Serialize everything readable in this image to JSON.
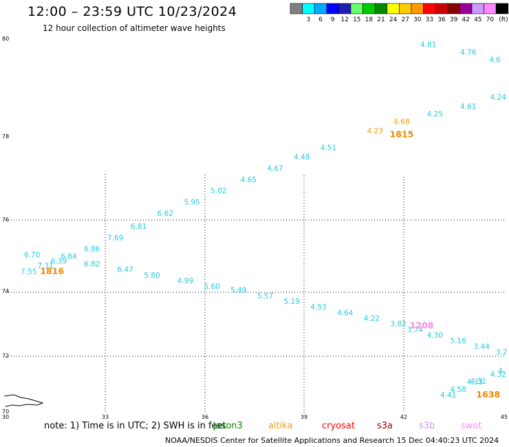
{
  "header": {
    "title": "12:00 – 23:59 UTC 10/23/2024",
    "subtitle": "12 hour collection of altimeter wave heights"
  },
  "colorbar": {
    "unit": "(ft)",
    "bins": [
      {
        "color": "#808080",
        "label": ""
      },
      {
        "color": "#00ffff",
        "label": "3"
      },
      {
        "color": "#00aaff",
        "label": "6"
      },
      {
        "color": "#0000ff",
        "label": "9"
      },
      {
        "color": "#1e1eb4",
        "label": "12"
      },
      {
        "color": "#66ff66",
        "label": "15"
      },
      {
        "color": "#00cc00",
        "label": "18"
      },
      {
        "color": "#008800",
        "label": "21"
      },
      {
        "color": "#ffff00",
        "label": "24"
      },
      {
        "color": "#ffcc00",
        "label": "27"
      },
      {
        "color": "#ff9900",
        "label": "30"
      },
      {
        "color": "#ff0000",
        "label": "33"
      },
      {
        "color": "#cc0000",
        "label": "36"
      },
      {
        "color": "#880000",
        "label": "39"
      },
      {
        "color": "#990099",
        "label": "42"
      },
      {
        "color": "#cc99ff",
        "label": "45"
      },
      {
        "color": "#ff88ff",
        "label": "70"
      },
      {
        "color": "#000000",
        "label": ""
      }
    ]
  },
  "map": {
    "lon_labels": [
      "30",
      "33",
      "36",
      "39",
      "42",
      "45"
    ],
    "lat_labels": [
      "80",
      "78",
      "76",
      "74",
      "72",
      "70"
    ],
    "lon_range": [
      30,
      45
    ],
    "lat_range": [
      70,
      80
    ]
  },
  "observations": [
    {
      "lon": 42.7,
      "lat": 79.75,
      "value": "4.81",
      "color": "#22ccdd"
    },
    {
      "lon": 43.9,
      "lat": 79.55,
      "value": "4.76",
      "color": "#22ccdd"
    },
    {
      "lon": 44.7,
      "lat": 79.35,
      "value": "4.6",
      "color": "#22ccdd"
    },
    {
      "lon": 44.8,
      "lat": 78.35,
      "value": "4.24",
      "color": "#22ccdd"
    },
    {
      "lon": 43.9,
      "lat": 78.1,
      "value": "4.61",
      "color": "#22ccdd"
    },
    {
      "lon": 42.9,
      "lat": 77.9,
      "value": "4.25",
      "color": "#22ccdd"
    },
    {
      "lon": 41.9,
      "lat": 77.7,
      "value": "4.68",
      "color": "#ff9900"
    },
    {
      "lon": 41.1,
      "lat": 77.45,
      "value": "4.23",
      "color": "#ff9900"
    },
    {
      "lon": 39.7,
      "lat": 77.0,
      "value": "4.51",
      "color": "#22ccdd"
    },
    {
      "lon": 38.9,
      "lat": 76.75,
      "value": "4.48",
      "color": "#22ccdd"
    },
    {
      "lon": 38.1,
      "lat": 76.45,
      "value": "4.67",
      "color": "#22ccdd"
    },
    {
      "lon": 37.3,
      "lat": 76.15,
      "value": "4.65",
      "color": "#22ccdd"
    },
    {
      "lon": 36.4,
      "lat": 75.85,
      "value": "5.02",
      "color": "#22ccdd"
    },
    {
      "lon": 35.6,
      "lat": 75.55,
      "value": "5.95",
      "color": "#22ccdd"
    },
    {
      "lon": 34.8,
      "lat": 75.25,
      "value": "6.62",
      "color": "#22ccdd"
    },
    {
      "lon": 34.0,
      "lat": 74.9,
      "value": "6.81",
      "color": "#22ccdd"
    },
    {
      "lon": 33.3,
      "lat": 74.6,
      "value": "7.69",
      "color": "#22ccdd"
    },
    {
      "lon": 32.6,
      "lat": 74.3,
      "value": "6.86",
      "color": "#22ccdd"
    },
    {
      "lon": 30.8,
      "lat": 74.15,
      "value": "6.70",
      "color": "#22ccdd"
    },
    {
      "lon": 31.9,
      "lat": 74.1,
      "value": "6.84",
      "color": "#22ccdd"
    },
    {
      "lon": 31.6,
      "lat": 73.97,
      "value": "6.39",
      "color": "#22ccdd"
    },
    {
      "lon": 31.2,
      "lat": 73.85,
      "value": "7.31",
      "color": "#22ccdd"
    },
    {
      "lon": 30.7,
      "lat": 73.7,
      "value": "7.55",
      "color": "#22ccdd"
    },
    {
      "lon": 32.6,
      "lat": 73.9,
      "value": "6.82",
      "color": "#22ccdd"
    },
    {
      "lon": 33.6,
      "lat": 73.75,
      "value": "6.47",
      "color": "#22ccdd"
    },
    {
      "lon": 34.4,
      "lat": 73.6,
      "value": "5.80",
      "color": "#22ccdd"
    },
    {
      "lon": 35.4,
      "lat": 73.45,
      "value": "4.99",
      "color": "#22ccdd"
    },
    {
      "lon": 36.2,
      "lat": 73.3,
      "value": "5.60",
      "color": "#22ccdd"
    },
    {
      "lon": 37.0,
      "lat": 73.2,
      "value": "5.49",
      "color": "#22ccdd"
    },
    {
      "lon": 37.8,
      "lat": 73.05,
      "value": "5.57",
      "color": "#22ccdd"
    },
    {
      "lon": 38.6,
      "lat": 72.9,
      "value": "5.19",
      "color": "#22ccdd"
    },
    {
      "lon": 39.4,
      "lat": 72.75,
      "value": "4.53",
      "color": "#22ccdd"
    },
    {
      "lon": 40.2,
      "lat": 72.6,
      "value": "4.64",
      "color": "#22ccdd"
    },
    {
      "lon": 41.0,
      "lat": 72.45,
      "value": "4.22",
      "color": "#22ccdd"
    },
    {
      "lon": 41.8,
      "lat": 72.3,
      "value": "3.82",
      "color": "#22ccdd"
    },
    {
      "lon": 42.3,
      "lat": 72.15,
      "value": "3.74",
      "color": "#22ccdd"
    },
    {
      "lon": 42.9,
      "lat": 72.0,
      "value": "4.30",
      "color": "#22ccdd"
    },
    {
      "lon": 43.6,
      "lat": 71.85,
      "value": "5.16",
      "color": "#22ccdd"
    },
    {
      "lon": 44.3,
      "lat": 71.7,
      "value": "3.44",
      "color": "#22ccdd"
    },
    {
      "lon": 44.9,
      "lat": 71.55,
      "value": "3.2",
      "color": "#22ccdd"
    },
    {
      "lon": 43.3,
      "lat": 70.4,
      "value": "4.41",
      "color": "#22ccdd"
    },
    {
      "lon": 43.6,
      "lat": 70.55,
      "value": "4.58",
      "color": "#22ccdd"
    },
    {
      "lon": 44.1,
      "lat": 70.75,
      "value": "4.33",
      "color": "#22ccdd"
    },
    {
      "lon": 44.2,
      "lat": 70.77,
      "value": "4.31",
      "color": "#22ccdd"
    },
    {
      "lon": 44.8,
      "lat": 70.95,
      "value": "4.32",
      "color": "#22ccdd"
    },
    {
      "lon": 44.9,
      "lat": 71.05,
      "value": "4.",
      "color": "#22ccdd"
    }
  ],
  "time_labels": [
    {
      "lon": 41.9,
      "lat": 77.35,
      "value": "1815",
      "color": "#ee8800"
    },
    {
      "lon": 31.4,
      "lat": 73.7,
      "value": "1816",
      "color": "#ee8800"
    },
    {
      "lon": 42.5,
      "lat": 72.25,
      "value": "1208",
      "color": "#ff88dd"
    },
    {
      "lon": 44.5,
      "lat": 70.4,
      "value": "1638",
      "color": "#ee8800"
    }
  ],
  "footer": {
    "note": "note:  1) Time is in UTC; 2) SWH is in feet",
    "satellites": [
      {
        "name": "jason3",
        "color": "#008800"
      },
      {
        "name": "altika",
        "color": "#ff9900"
      },
      {
        "name": "cryosat",
        "color": "#ff0000"
      },
      {
        "name": "s3a",
        "color": "#880000"
      },
      {
        "name": "s3b",
        "color": "#cc99ff"
      },
      {
        "name": "swot",
        "color": "#ff88ff"
      }
    ],
    "credit": "NOAA/NESDIS Center for Satellite Applications and Research    15 Dec 04:40:23 UTC 2024"
  }
}
